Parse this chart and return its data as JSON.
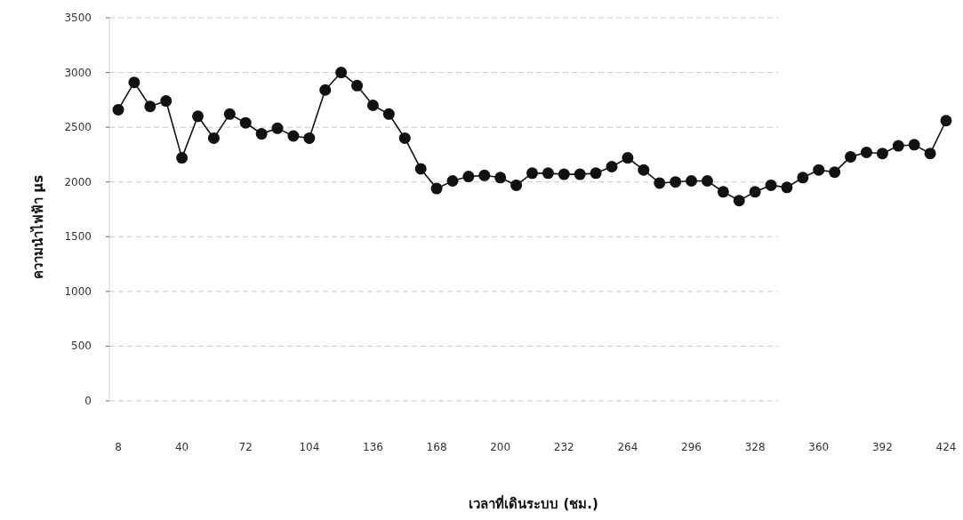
{
  "chart_data": {
    "type": "line",
    "xlabel": "เวลาที่เดินระบบ (ชม.)",
    "ylabel": "ความนำไฟฟ้า μs",
    "x": [
      8,
      16,
      24,
      32,
      40,
      48,
      56,
      64,
      72,
      80,
      88,
      96,
      104,
      112,
      120,
      128,
      136,
      144,
      152,
      160,
      168,
      176,
      184,
      192,
      200,
      208,
      216,
      224,
      232,
      240,
      248,
      256,
      264,
      272,
      280,
      288,
      296,
      304,
      312,
      320,
      328,
      336,
      344,
      352,
      360,
      368,
      376,
      384,
      392,
      400,
      408,
      416,
      424
    ],
    "series": [
      {
        "color": "#111111",
        "values": [
          2660,
          2910,
          2690,
          2740,
          2220,
          2600,
          2400,
          2620,
          2540,
          2440,
          2490,
          2420,
          2400,
          2840,
          3000,
          2880,
          2700,
          2620,
          2400,
          2120,
          1940,
          2010,
          2050,
          2060,
          2040,
          1970,
          2080,
          2080,
          2070,
          2070,
          2080,
          2140,
          2220,
          2110,
          1990,
          2000,
          2010,
          2010,
          1910,
          1830,
          1910,
          1970,
          1950,
          2040,
          2110,
          2090,
          2230,
          2270,
          2260,
          2330,
          2340,
          2260,
          2560
        ]
      }
    ],
    "xlim": [
      8,
      424
    ],
    "xticks": [
      8,
      40,
      72,
      104,
      136,
      168,
      200,
      232,
      264,
      296,
      328,
      360,
      392,
      424
    ],
    "ylim": [
      0,
      3500
    ],
    "yticks": [
      0,
      500,
      1000,
      1500,
      2000,
      2500,
      3000,
      3500
    ],
    "grid": "y",
    "marker": "circle",
    "line_style": "solid"
  }
}
